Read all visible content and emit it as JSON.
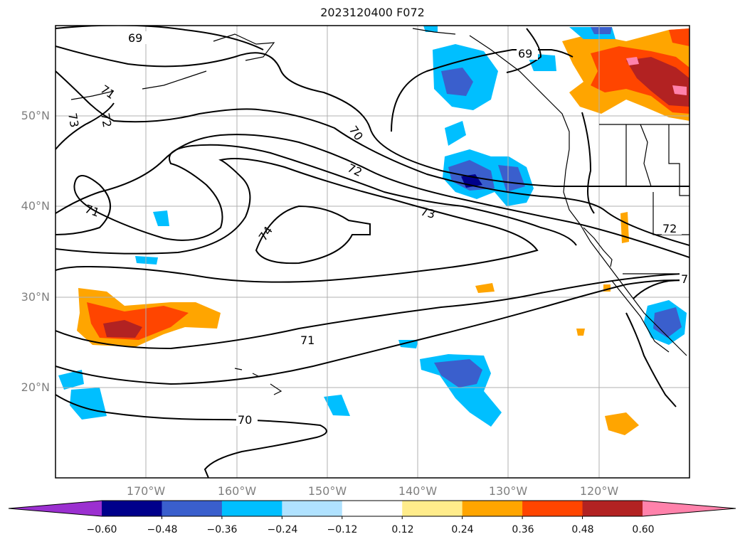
{
  "title": "2023120400 F072",
  "map": {
    "lat_labels": [
      "50°N",
      "40°N",
      "30°N",
      "20°N"
    ],
    "lon_labels": [
      "170°W",
      "160°W",
      "150°W",
      "140°W",
      "130°W",
      "120°W"
    ],
    "contour_labels": [
      "69",
      "69",
      "71",
      "72",
      "73",
      "70",
      "72",
      "73",
      "74",
      "71",
      "71",
      "70",
      "72",
      "7"
    ],
    "grid_color": "#b0b0b0"
  },
  "colorbar": {
    "ticks": [
      "−0.60",
      "−0.48",
      "−0.36",
      "−0.24",
      "−0.12",
      "0.12",
      "0.24",
      "0.36",
      "0.48",
      "0.60"
    ],
    "colors": [
      "#9b30d0",
      "#00008b",
      "#3a5fcd",
      "#00bfff",
      "#b0e2ff",
      "#ffffff",
      "#ffec8b",
      "#ffa500",
      "#ff4500",
      "#b22222",
      "#ff82ab"
    ]
  }
}
